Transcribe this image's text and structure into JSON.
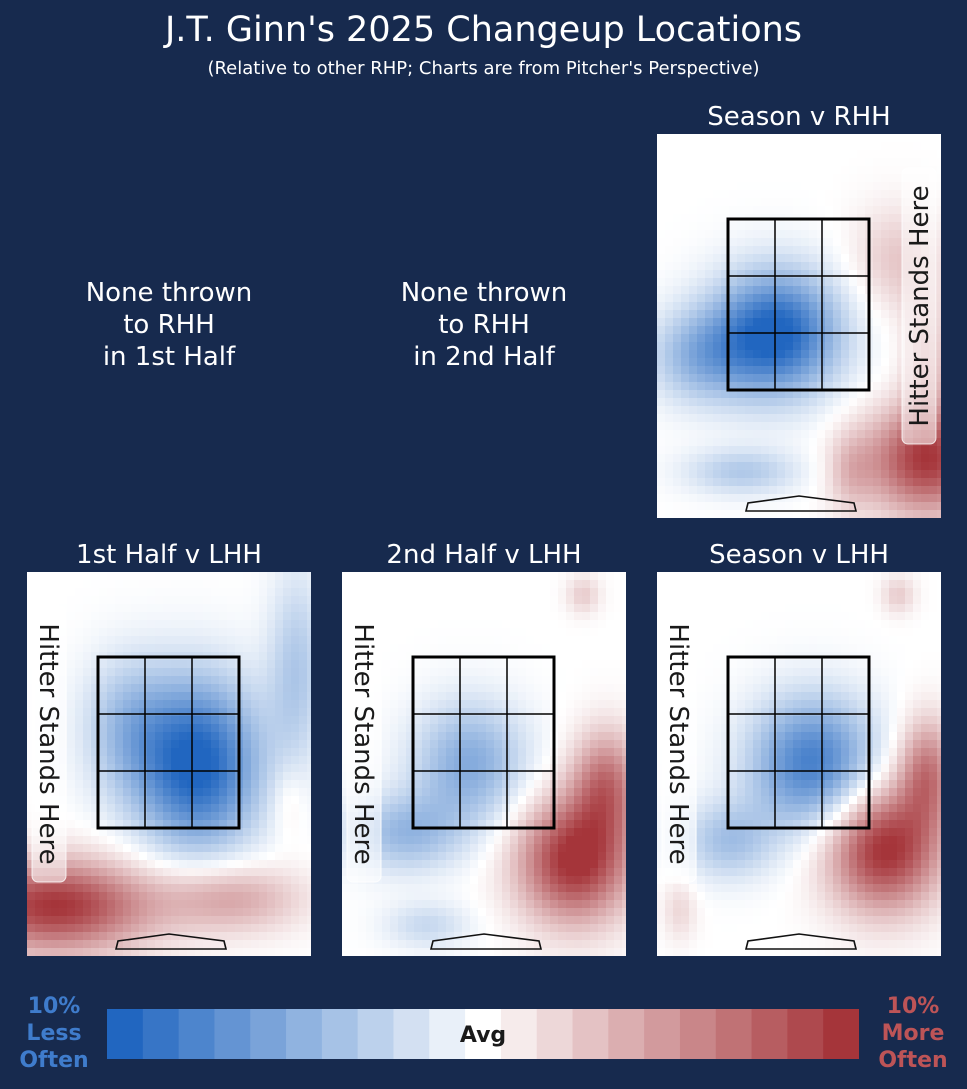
{
  "header": {
    "title": "J.T. Ginn's 2025 Changeup Locations",
    "subtitle": "(Relative to other RHP; Charts are from Pitcher's Perspective)"
  },
  "empty_panels": [
    {
      "lines": [
        "None thrown",
        "to RHH",
        "in 1st Half"
      ]
    },
    {
      "lines": [
        "None thrown",
        "to RHH",
        "in 2nd Half"
      ]
    }
  ],
  "hitter_label": "Hitter Stands Here",
  "colors": {
    "background": "#172a4e",
    "less_often": "#2166c0",
    "more_often": "#a5353a",
    "avg": "#ffffff"
  },
  "colorbar": {
    "left_label": [
      "10%",
      "Less",
      "Often"
    ],
    "center_label": "Avg",
    "right_label": [
      "10%",
      "More",
      "Often"
    ],
    "steps": 21
  },
  "chart_data": [
    {
      "type": "heatmap",
      "title": "Season v RHH",
      "hitter_side": "right",
      "value_scale": "relative frequency vs other RHP (-10% to +10%)",
      "hot_spots": [
        {
          "zone": "lower-left in zone",
          "value": -10
        },
        {
          "zone": "middle-left in zone",
          "value": -6
        },
        {
          "zone": "upper-right in zone",
          "value": 3
        },
        {
          "zone": "below zone, right",
          "value": 9
        },
        {
          "zone": "above zone, right",
          "value": 1
        }
      ]
    },
    {
      "type": "heatmap",
      "title": "1st Half v LHH",
      "hitter_side": "left",
      "value_scale": "relative frequency vs other RHP (-10% to +10%)",
      "hot_spots": [
        {
          "zone": "middle/lower-right in zone",
          "value": -10
        },
        {
          "zone": "center in zone",
          "value": -7
        },
        {
          "zone": "below zone, left",
          "value": 9
        },
        {
          "zone": "below zone, right",
          "value": 4
        },
        {
          "zone": "right edge, low",
          "value": 2
        }
      ]
    },
    {
      "type": "heatmap",
      "title": "2nd Half v LHH",
      "hitter_side": "left",
      "value_scale": "relative frequency vs other RHP (-10% to +10%)",
      "hot_spots": [
        {
          "zone": "center in zone",
          "value": -6
        },
        {
          "zone": "below zone, left",
          "value": -5
        },
        {
          "zone": "low and away (right)",
          "value": 10
        },
        {
          "zone": "top right corner",
          "value": 1
        }
      ]
    },
    {
      "type": "heatmap",
      "title": "Season v LHH",
      "hitter_side": "left",
      "value_scale": "relative frequency vs other RHP (-10% to +10%)",
      "hot_spots": [
        {
          "zone": "center/right in zone",
          "value": -8
        },
        {
          "zone": "below zone, left",
          "value": -4
        },
        {
          "zone": "low and away (right)",
          "value": 10
        },
        {
          "zone": "top right corner",
          "value": 1
        }
      ]
    }
  ]
}
